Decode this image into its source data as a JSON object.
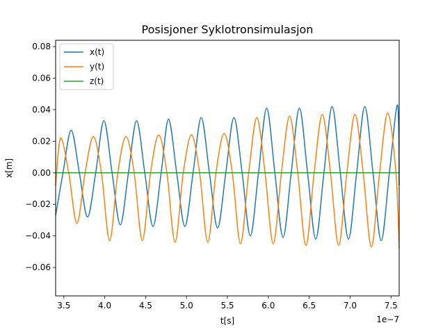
{
  "chart_data": {
    "type": "line",
    "title": "Posisjoner Syklotronsimulasjon",
    "xlabel": "t[s]",
    "ylabel": "x[m]",
    "x_offset_label": "1e−7",
    "xlim": [
      3.4,
      7.6
    ],
    "ylim": [
      -0.078,
      0.084
    ],
    "xticks": [
      3.5,
      4.0,
      4.5,
      5.0,
      5.5,
      6.0,
      6.5,
      7.0,
      7.5
    ],
    "xtick_labels": [
      "3.5",
      "4.0",
      "4.5",
      "5.0",
      "5.5",
      "6.0",
      "6.5",
      "7.0",
      "7.5"
    ],
    "yticks": [
      -0.06,
      -0.04,
      -0.02,
      0.0,
      0.02,
      0.04,
      0.06,
      0.08
    ],
    "ytick_labels": [
      "−0.06",
      "−0.04",
      "−0.02",
      "0.00",
      "0.02",
      "0.04",
      "0.06",
      "0.08"
    ],
    "grid": false,
    "legend_position": "upper left",
    "series": [
      {
        "name": "x(t)",
        "color": "#1f77b4",
        "x": [
          3.4,
          3.49,
          3.59,
          3.69,
          3.79,
          3.89,
          3.99,
          4.09,
          4.19,
          4.29,
          4.39,
          4.49,
          4.59,
          4.69,
          4.78,
          4.88,
          4.98,
          5.08,
          5.18,
          5.28,
          5.38,
          5.48,
          5.58,
          5.68,
          5.78,
          5.88,
          5.98,
          6.08,
          6.18,
          6.28,
          6.38,
          6.48,
          6.58,
          6.68,
          6.78,
          6.88,
          6.98,
          7.08,
          7.18,
          7.28,
          7.38,
          7.48,
          7.58,
          7.6
        ],
        "y": [
          -0.027,
          0.0,
          0.027,
          0.0,
          -0.028,
          0.0,
          0.033,
          0.0,
          -0.033,
          0.0,
          0.033,
          0.0,
          -0.034,
          0.0,
          0.034,
          0.0,
          -0.034,
          0.0,
          0.035,
          0.0,
          -0.035,
          0.0,
          0.035,
          0.0,
          -0.04,
          0.0,
          0.041,
          0.0,
          -0.041,
          0.0,
          0.041,
          0.0,
          -0.042,
          0.0,
          0.042,
          0.0,
          -0.042,
          0.0,
          0.042,
          0.0,
          -0.043,
          0.0,
          0.043,
          -0.008
        ]
      },
      {
        "name": "y(t)",
        "color": "#ff7f0e",
        "x": [
          3.4,
          3.46,
          3.56,
          3.66,
          3.76,
          3.86,
          3.96,
          4.06,
          4.16,
          4.26,
          4.36,
          4.46,
          4.56,
          4.66,
          4.76,
          4.86,
          4.96,
          5.06,
          5.16,
          5.26,
          5.36,
          5.46,
          5.56,
          5.66,
          5.76,
          5.86,
          5.96,
          6.06,
          6.16,
          6.26,
          6.36,
          6.46,
          6.56,
          6.66,
          6.76,
          6.86,
          6.96,
          7.06,
          7.16,
          7.26,
          7.36,
          7.46,
          7.56,
          7.6
        ],
        "y": [
          -0.008,
          0.022,
          0.0,
          -0.032,
          0.0,
          0.023,
          0.0,
          -0.043,
          0.0,
          0.023,
          0.0,
          -0.043,
          0.0,
          0.024,
          0.0,
          -0.044,
          0.0,
          0.024,
          0.0,
          -0.044,
          0.0,
          0.025,
          0.0,
          -0.045,
          0.0,
          0.035,
          0.0,
          -0.045,
          0.0,
          0.036,
          0.0,
          -0.046,
          0.0,
          0.037,
          0.0,
          -0.046,
          0.0,
          0.037,
          0.0,
          -0.047,
          0.0,
          0.038,
          0.0,
          -0.048
        ]
      },
      {
        "name": "z(t)",
        "color": "#2ca02c",
        "x": [
          3.4,
          7.6
        ],
        "y": [
          0.0,
          0.0
        ]
      }
    ]
  }
}
